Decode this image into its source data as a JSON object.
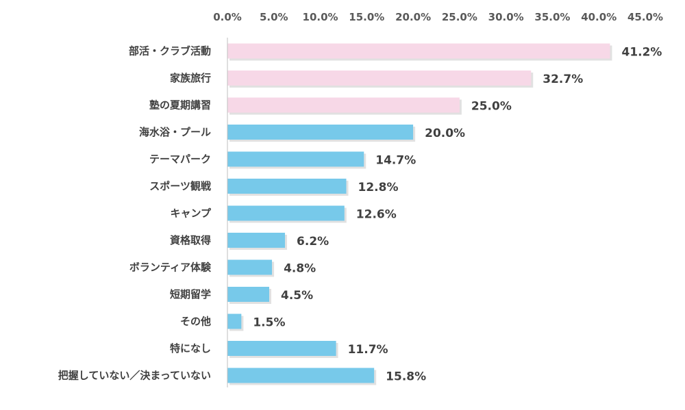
{
  "chart_data": {
    "type": "bar",
    "orientation": "horizontal",
    "categories": [
      "部活・クラブ活動",
      "家族旅行",
      "塾の夏期講習",
      "海水浴・プール",
      "テーマパーク",
      "スポーツ観戦",
      "キャンプ",
      "資格取得",
      "ボランティア体験",
      "短期留学",
      "その他",
      "特になし",
      "把握していない／決まっていない"
    ],
    "values": [
      41.2,
      32.7,
      25.0,
      20.0,
      14.7,
      12.8,
      12.6,
      6.2,
      4.8,
      4.5,
      1.5,
      11.7,
      15.8
    ],
    "value_labels": [
      "41.2%",
      "32.7%",
      "25.0%",
      "20.0%",
      "14.7%",
      "12.8%",
      "12.6%",
      "6.2%",
      "4.8%",
      "4.5%",
      "1.5%",
      "11.7%",
      "15.8%"
    ],
    "xlim": [
      0,
      45
    ],
    "x_ticks": [
      0,
      5,
      10,
      15,
      20,
      25,
      30,
      35,
      40,
      45
    ],
    "x_tick_labels": [
      "0.0%",
      "5.0%",
      "10.0%",
      "15.0%",
      "20.0%",
      "25.0%",
      "30.0%",
      "35.0%",
      "40.0%",
      "45.0%"
    ],
    "x_axis_position": "top",
    "grid": false,
    "highlight_count": 3,
    "colors": {
      "highlight": "#f7d8e7",
      "normal": "#77c9ea",
      "shadow": "#c9c9c9",
      "axis": "#bfbfbf"
    }
  }
}
